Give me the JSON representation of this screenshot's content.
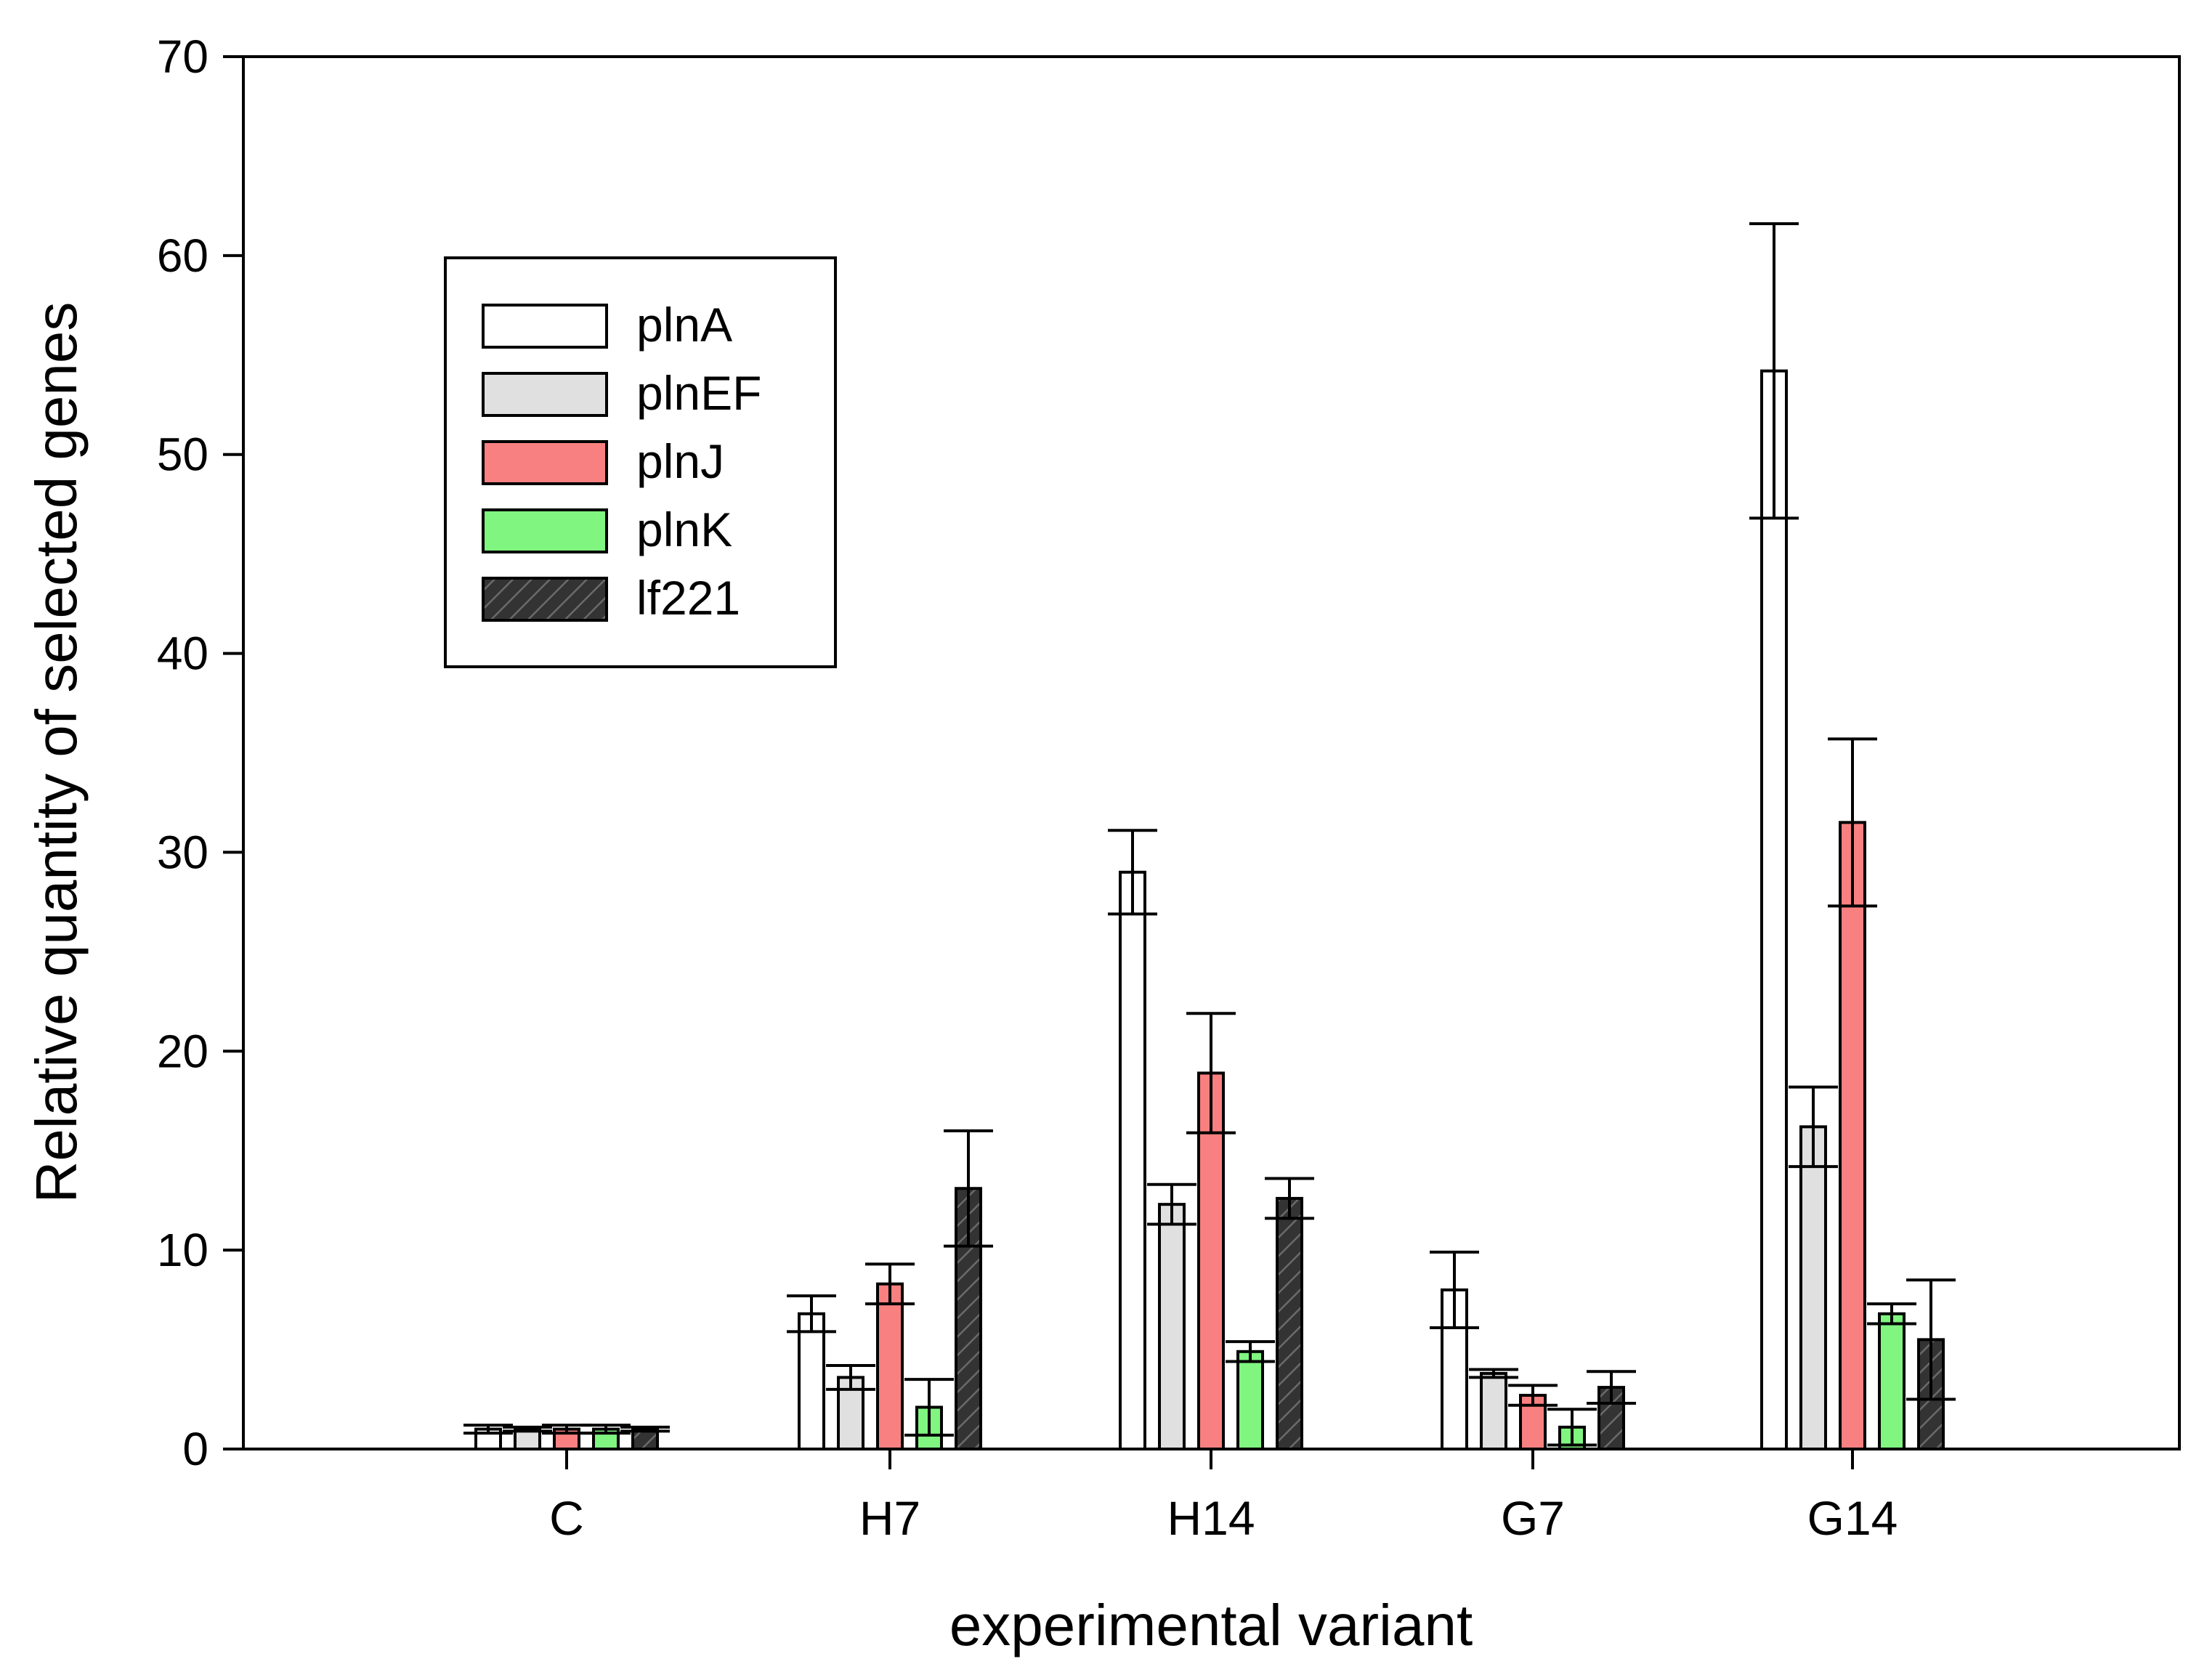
{
  "chart_data": {
    "type": "bar",
    "xlabel": "experimental variant",
    "ylabel": "Relative quantity of selected genes",
    "ylim": [
      0,
      70
    ],
    "yticks": [
      0,
      10,
      20,
      30,
      40,
      50,
      60,
      70
    ],
    "categories": [
      "C",
      "H7",
      "H14",
      "G7",
      "G14"
    ],
    "legend_position": "upper-left",
    "series": [
      {
        "name": "plnA",
        "color": "#ffffff",
        "hatch": false,
        "values": [
          1.0,
          6.8,
          29.0,
          8.0,
          54.2
        ],
        "errors": [
          0.2,
          0.9,
          2.1,
          1.9,
          7.4
        ]
      },
      {
        "name": "plnEF",
        "color": "#e0e0e0",
        "hatch": false,
        "values": [
          1.0,
          3.6,
          12.3,
          3.8,
          16.2
        ],
        "errors": [
          0.1,
          0.6,
          1.0,
          0.2,
          2.0
        ]
      },
      {
        "name": "plnJ",
        "color": "#f98080",
        "hatch": false,
        "values": [
          1.0,
          8.3,
          18.9,
          2.7,
          31.5
        ],
        "errors": [
          0.2,
          1.0,
          3.0,
          0.5,
          4.2
        ]
      },
      {
        "name": "plnK",
        "color": "#80f580",
        "hatch": false,
        "values": [
          1.0,
          2.1,
          4.9,
          1.1,
          6.8
        ],
        "errors": [
          0.2,
          1.4,
          0.5,
          0.9,
          0.5
        ]
      },
      {
        "name": "lf221",
        "color": "#333333",
        "hatch": true,
        "values": [
          1.0,
          13.1,
          12.6,
          3.1,
          5.5
        ],
        "errors": [
          0.1,
          2.9,
          1.0,
          0.8,
          3.0
        ]
      }
    ]
  }
}
